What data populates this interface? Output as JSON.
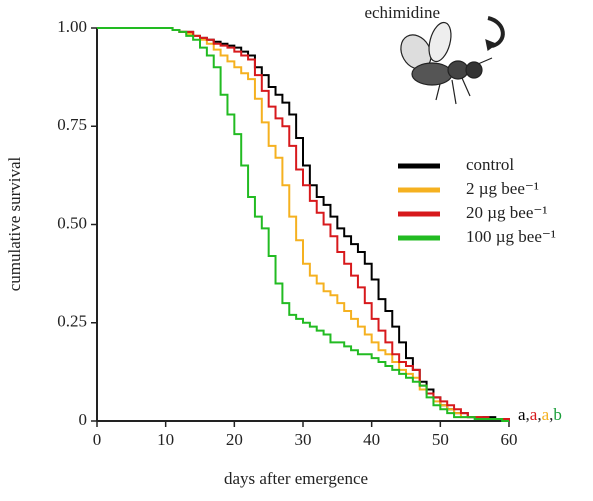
{
  "chart_data": {
    "type": "line",
    "step": true,
    "xlabel": "days after emergence",
    "ylabel": "cumulative survival",
    "annotation": "echimidine",
    "xlim": [
      0,
      60
    ],
    "ylim": [
      0,
      1
    ],
    "xticks": [
      0,
      10,
      20,
      30,
      40,
      50,
      60
    ],
    "yticks": [
      0,
      {
        "value": 0.25,
        "label": "0.25"
      },
      {
        "value": 0.5,
        "label": "0.50"
      },
      {
        "value": 0.75,
        "label": "0.75"
      },
      {
        "value": 1,
        "label": "1.00"
      }
    ],
    "legend": "right",
    "letters": [
      {
        "text": "a",
        "color": "#000000"
      },
      {
        "text": "a",
        "color": "#d7191c"
      },
      {
        "text": "a",
        "color": "#f5b120"
      },
      {
        "text": "b",
        "color": "#1a9e3a"
      }
    ],
    "letter_separator": ",",
    "x": [
      0,
      1,
      2,
      3,
      4,
      5,
      6,
      7,
      8,
      9,
      10,
      11,
      12,
      13,
      14,
      15,
      16,
      17,
      18,
      19,
      20,
      21,
      22,
      23,
      24,
      25,
      26,
      27,
      28,
      29,
      30,
      31,
      32,
      33,
      34,
      35,
      36,
      37,
      38,
      39,
      40,
      41,
      42,
      43,
      44,
      45,
      46,
      47,
      48,
      49,
      50,
      51,
      52,
      53,
      54,
      55,
      56,
      57,
      58,
      59,
      60
    ],
    "series": [
      {
        "name": "control",
        "color": "#000000",
        "values": [
          1,
          1,
          1,
          1,
          1,
          1,
          1,
          1,
          1,
          1,
          1,
          0.995,
          0.99,
          0.99,
          0.98,
          0.975,
          0.97,
          0.965,
          0.96,
          0.955,
          0.95,
          0.94,
          0.93,
          0.9,
          0.88,
          0.85,
          0.83,
          0.81,
          0.78,
          0.72,
          0.65,
          0.6,
          0.57,
          0.55,
          0.52,
          0.49,
          0.47,
          0.45,
          0.43,
          0.4,
          0.36,
          0.31,
          0.28,
          0.24,
          0.2,
          0.16,
          0.13,
          0.1,
          0.08,
          0.06,
          0.04,
          0.03,
          0.02,
          0.02,
          0.01,
          0.01,
          0.01,
          0.01,
          0.005,
          0.005,
          0
        ]
      },
      {
        "name": "2 µg bee⁻¹",
        "color": "#f5b120",
        "values": [
          1,
          1,
          1,
          1,
          1,
          1,
          1,
          1,
          1,
          1,
          1,
          0.995,
          0.99,
          0.985,
          0.98,
          0.97,
          0.96,
          0.945,
          0.93,
          0.915,
          0.9,
          0.885,
          0.87,
          0.82,
          0.76,
          0.7,
          0.67,
          0.6,
          0.52,
          0.46,
          0.4,
          0.37,
          0.35,
          0.33,
          0.32,
          0.3,
          0.28,
          0.26,
          0.24,
          0.22,
          0.2,
          0.18,
          0.17,
          0.15,
          0.13,
          0.12,
          0.11,
          0.08,
          0.07,
          0.05,
          0.04,
          0.03,
          0.02,
          0.01,
          0.01,
          0.01,
          0.005,
          0.005,
          0.005,
          0.005,
          0
        ]
      },
      {
        "name": "20 µg bee⁻¹",
        "color": "#d7191c",
        "values": [
          1,
          1,
          1,
          1,
          1,
          1,
          1,
          1,
          1,
          1,
          1,
          0.995,
          0.99,
          0.99,
          0.98,
          0.975,
          0.97,
          0.96,
          0.955,
          0.95,
          0.94,
          0.93,
          0.92,
          0.88,
          0.84,
          0.8,
          0.77,
          0.75,
          0.7,
          0.64,
          0.6,
          0.56,
          0.53,
          0.5,
          0.47,
          0.43,
          0.4,
          0.37,
          0.34,
          0.3,
          0.26,
          0.23,
          0.2,
          0.17,
          0.15,
          0.14,
          0.13,
          0.09,
          0.07,
          0.06,
          0.05,
          0.04,
          0.03,
          0.02,
          0.01,
          0.01,
          0.01,
          0.005,
          0.005,
          0.005,
          0
        ]
      },
      {
        "name": "100 µg bee⁻¹",
        "color": "#22bb22",
        "values": [
          1,
          1,
          1,
          1,
          1,
          1,
          1,
          1,
          1,
          1,
          1,
          0.995,
          0.99,
          0.98,
          0.97,
          0.95,
          0.93,
          0.9,
          0.83,
          0.78,
          0.73,
          0.65,
          0.57,
          0.52,
          0.49,
          0.42,
          0.35,
          0.3,
          0.27,
          0.26,
          0.25,
          0.24,
          0.23,
          0.22,
          0.2,
          0.2,
          0.19,
          0.18,
          0.17,
          0.17,
          0.16,
          0.15,
          0.14,
          0.13,
          0.12,
          0.11,
          0.1,
          0.09,
          0.06,
          0.04,
          0.03,
          0.02,
          0.01,
          0.01,
          0.01,
          0.005,
          0.005,
          0.005,
          0.005,
          0,
          0
        ]
      }
    ]
  }
}
